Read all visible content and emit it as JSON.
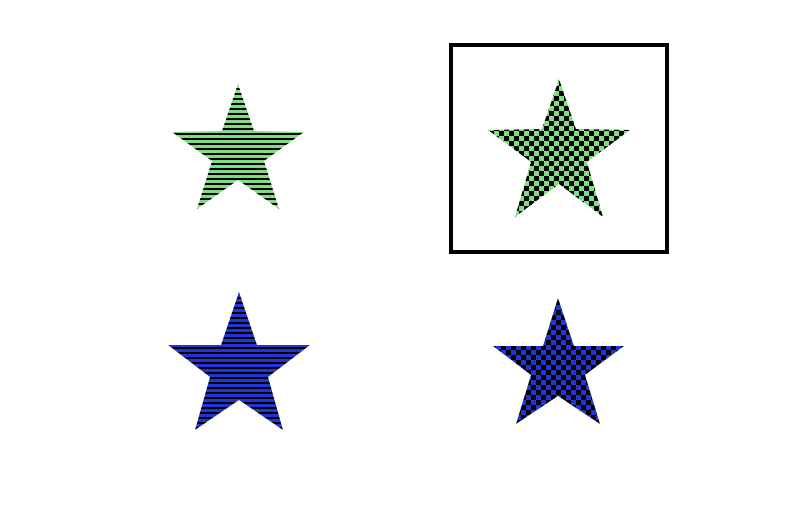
{
  "colors": {
    "background": "#ffffff",
    "pattern_dark": "#000000",
    "green": "#7fdc7f",
    "blue": "#1f35d8",
    "selection_border": "#000000"
  },
  "items": [
    {
      "name": "green-striped-star",
      "shape": "star",
      "color": "green",
      "pattern": "horizontal-stripes",
      "selected": false
    },
    {
      "name": "green-checkered-star",
      "shape": "star",
      "color": "green",
      "pattern": "checkerboard",
      "selected": true
    },
    {
      "name": "blue-striped-star",
      "shape": "star",
      "color": "blue",
      "pattern": "horizontal-stripes",
      "selected": false
    },
    {
      "name": "blue-checkered-star",
      "shape": "star",
      "color": "blue",
      "pattern": "checkerboard",
      "selected": false
    }
  ]
}
